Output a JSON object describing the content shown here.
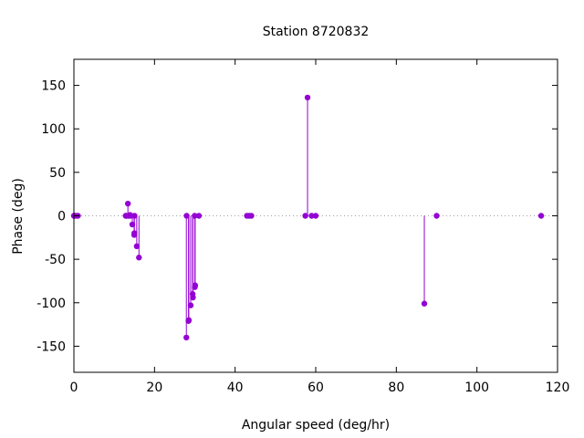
{
  "chart_data": {
    "type": "scatter",
    "style": "impulses-with-points",
    "title": "Station 8720832",
    "xlabel": "Angular speed (deg/hr)",
    "ylabel": "Phase (deg)",
    "xlim": [
      0,
      120
    ],
    "ylim": [
      -180,
      180
    ],
    "xticks": [
      0,
      20,
      40,
      60,
      80,
      100,
      120
    ],
    "yticks": [
      -150,
      -100,
      -50,
      0,
      50,
      100,
      150
    ],
    "grid": false,
    "zero_line": "dotted",
    "legend": "none",
    "color": "#9400d3",
    "points": [
      [
        0.0,
        0
      ],
      [
        0.04,
        0
      ],
      [
        0.08,
        0
      ],
      [
        0.5,
        0
      ],
      [
        1.0,
        0
      ],
      [
        12.85,
        0
      ],
      [
        13.0,
        0
      ],
      [
        13.4,
        14
      ],
      [
        13.47,
        0
      ],
      [
        13.94,
        1
      ],
      [
        14.0,
        0
      ],
      [
        14.49,
        -10
      ],
      [
        14.96,
        -22
      ],
      [
        15.0,
        -20
      ],
      [
        15.04,
        0
      ],
      [
        15.59,
        -35
      ],
      [
        16.14,
        -48
      ],
      [
        27.97,
        0
      ],
      [
        27.9,
        -140
      ],
      [
        28.44,
        -121
      ],
      [
        28.51,
        -120
      ],
      [
        28.98,
        -103
      ],
      [
        29.46,
        -90
      ],
      [
        29.53,
        -94
      ],
      [
        29.96,
        0
      ],
      [
        30.0,
        -82
      ],
      [
        30.08,
        -80
      ],
      [
        31.02,
        0
      ],
      [
        42.93,
        0
      ],
      [
        43.48,
        0
      ],
      [
        44.03,
        0
      ],
      [
        57.42,
        0
      ],
      [
        57.97,
        136
      ],
      [
        58.98,
        0
      ],
      [
        60.0,
        0
      ],
      [
        86.95,
        -101
      ],
      [
        90.0,
        0
      ],
      [
        115.94,
        0
      ]
    ]
  }
}
